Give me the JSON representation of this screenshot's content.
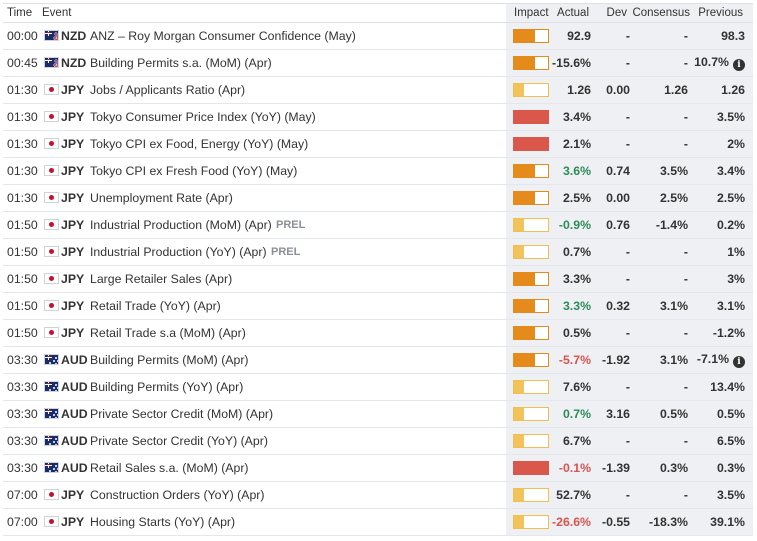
{
  "header": {
    "time": "Time",
    "event": "Event",
    "impact": "Impact",
    "actual": "Actual",
    "dev": "Dev",
    "consensus": "Consensus",
    "previous": "Previous"
  },
  "rows": [
    {
      "time": "00:00",
      "currency": "NZD",
      "flag": "nz-flag-icon",
      "event": "ANZ – Roy Morgan Consumer Confidence (May)",
      "prel": "",
      "impact": 2,
      "actual": "92.9",
      "actual_tone": "",
      "dev": "-",
      "consensus": "-",
      "previous": "98.3",
      "info": false
    },
    {
      "time": "00:45",
      "currency": "NZD",
      "flag": "nz-flag-icon",
      "event": "Building Permits s.a. (MoM) (Apr)",
      "prel": "",
      "impact": 2,
      "actual": "-15.6%",
      "actual_tone": "",
      "dev": "-",
      "consensus": "-",
      "previous": "10.7%",
      "info": true
    },
    {
      "time": "01:30",
      "currency": "JPY",
      "flag": "jp-flag-icon",
      "event": "Jobs / Applicants Ratio (Apr)",
      "prel": "",
      "impact": 1,
      "actual": "1.26",
      "actual_tone": "",
      "dev": "0.00",
      "consensus": "1.26",
      "previous": "1.26",
      "info": false
    },
    {
      "time": "01:30",
      "currency": "JPY",
      "flag": "jp-flag-icon",
      "event": "Tokyo Consumer Price Index (YoY) (May)",
      "prel": "",
      "impact": 3,
      "actual": "3.4%",
      "actual_tone": "",
      "dev": "-",
      "consensus": "-",
      "previous": "3.5%",
      "info": false
    },
    {
      "time": "01:30",
      "currency": "JPY",
      "flag": "jp-flag-icon",
      "event": "Tokyo CPI ex Food, Energy (YoY) (May)",
      "prel": "",
      "impact": 3,
      "actual": "2.1%",
      "actual_tone": "",
      "dev": "-",
      "consensus": "-",
      "previous": "2%",
      "info": false
    },
    {
      "time": "01:30",
      "currency": "JPY",
      "flag": "jp-flag-icon",
      "event": "Tokyo CPI ex Fresh Food (YoY) (May)",
      "prel": "",
      "impact": 2,
      "actual": "3.6%",
      "actual_tone": "pos",
      "dev": "0.74",
      "consensus": "3.5%",
      "previous": "3.4%",
      "info": false
    },
    {
      "time": "01:30",
      "currency": "JPY",
      "flag": "jp-flag-icon",
      "event": "Unemployment Rate (Apr)",
      "prel": "",
      "impact": 2,
      "actual": "2.5%",
      "actual_tone": "",
      "dev": "0.00",
      "consensus": "2.5%",
      "previous": "2.5%",
      "info": false
    },
    {
      "time": "01:50",
      "currency": "JPY",
      "flag": "jp-flag-icon",
      "event": "Industrial Production (MoM) (Apr)",
      "prel": "PREL",
      "impact": 1,
      "actual": "-0.9%",
      "actual_tone": "pos",
      "dev": "0.76",
      "consensus": "-1.4%",
      "previous": "0.2%",
      "info": false
    },
    {
      "time": "01:50",
      "currency": "JPY",
      "flag": "jp-flag-icon",
      "event": "Industrial Production (YoY) (Apr)",
      "prel": "PREL",
      "impact": 1,
      "actual": "0.7%",
      "actual_tone": "",
      "dev": "-",
      "consensus": "-",
      "previous": "1%",
      "info": false
    },
    {
      "time": "01:50",
      "currency": "JPY",
      "flag": "jp-flag-icon",
      "event": "Large Retailer Sales (Apr)",
      "prel": "",
      "impact": 2,
      "actual": "3.3%",
      "actual_tone": "",
      "dev": "-",
      "consensus": "-",
      "previous": "3%",
      "info": false
    },
    {
      "time": "01:50",
      "currency": "JPY",
      "flag": "jp-flag-icon",
      "event": "Retail Trade (YoY) (Apr)",
      "prel": "",
      "impact": 2,
      "actual": "3.3%",
      "actual_tone": "pos",
      "dev": "0.32",
      "consensus": "3.1%",
      "previous": "3.1%",
      "info": false
    },
    {
      "time": "01:50",
      "currency": "JPY",
      "flag": "jp-flag-icon",
      "event": "Retail Trade s.a (MoM) (Apr)",
      "prel": "",
      "impact": 2,
      "actual": "0.5%",
      "actual_tone": "",
      "dev": "-",
      "consensus": "-",
      "previous": "-1.2%",
      "info": false
    },
    {
      "time": "03:30",
      "currency": "AUD",
      "flag": "au-flag-icon",
      "event": "Building Permits (MoM) (Apr)",
      "prel": "",
      "impact": 2,
      "actual": "-5.7%",
      "actual_tone": "neg",
      "dev": "-1.92",
      "consensus": "3.1%",
      "previous": "-7.1%",
      "info": true
    },
    {
      "time": "03:30",
      "currency": "AUD",
      "flag": "au-flag-icon",
      "event": "Building Permits (YoY) (Apr)",
      "prel": "",
      "impact": 1,
      "actual": "7.6%",
      "actual_tone": "",
      "dev": "-",
      "consensus": "-",
      "previous": "13.4%",
      "info": false
    },
    {
      "time": "03:30",
      "currency": "AUD",
      "flag": "au-flag-icon",
      "event": "Private Sector Credit (MoM) (Apr)",
      "prel": "",
      "impact": 1,
      "actual": "0.7%",
      "actual_tone": "pos",
      "dev": "3.16",
      "consensus": "0.5%",
      "previous": "0.5%",
      "info": false
    },
    {
      "time": "03:30",
      "currency": "AUD",
      "flag": "au-flag-icon",
      "event": "Private Sector Credit (YoY) (Apr)",
      "prel": "",
      "impact": 1,
      "actual": "6.7%",
      "actual_tone": "",
      "dev": "-",
      "consensus": "-",
      "previous": "6.5%",
      "info": false
    },
    {
      "time": "03:30",
      "currency": "AUD",
      "flag": "au-flag-icon",
      "event": "Retail Sales s.a. (MoM) (Apr)",
      "prel": "",
      "impact": 3,
      "actual": "-0.1%",
      "actual_tone": "neg",
      "dev": "-1.39",
      "consensus": "0.3%",
      "previous": "0.3%",
      "info": false
    },
    {
      "time": "07:00",
      "currency": "JPY",
      "flag": "jp-flag-icon",
      "event": "Construction Orders (YoY) (Apr)",
      "prel": "",
      "impact": 1,
      "actual": "52.7%",
      "actual_tone": "",
      "dev": "-",
      "consensus": "-",
      "previous": "3.5%",
      "info": false
    },
    {
      "time": "07:00",
      "currency": "JPY",
      "flag": "jp-flag-icon",
      "event": "Housing Starts (YoY) (Apr)",
      "prel": "",
      "impact": 1,
      "actual": "-26.6%",
      "actual_tone": "neg",
      "dev": "-0.55",
      "consensus": "-18.3%",
      "previous": "39.1%",
      "info": false
    }
  ],
  "colors": {
    "impact_low": "#f1c35a",
    "impact_medium": "#e48b1c",
    "impact_high": "#d9574b",
    "positive": "#2e8b57",
    "negative": "#d9534f",
    "shaded_columns": "#eef0f3"
  },
  "info_icon": {
    "name": "info-icon",
    "glyph": "i"
  }
}
